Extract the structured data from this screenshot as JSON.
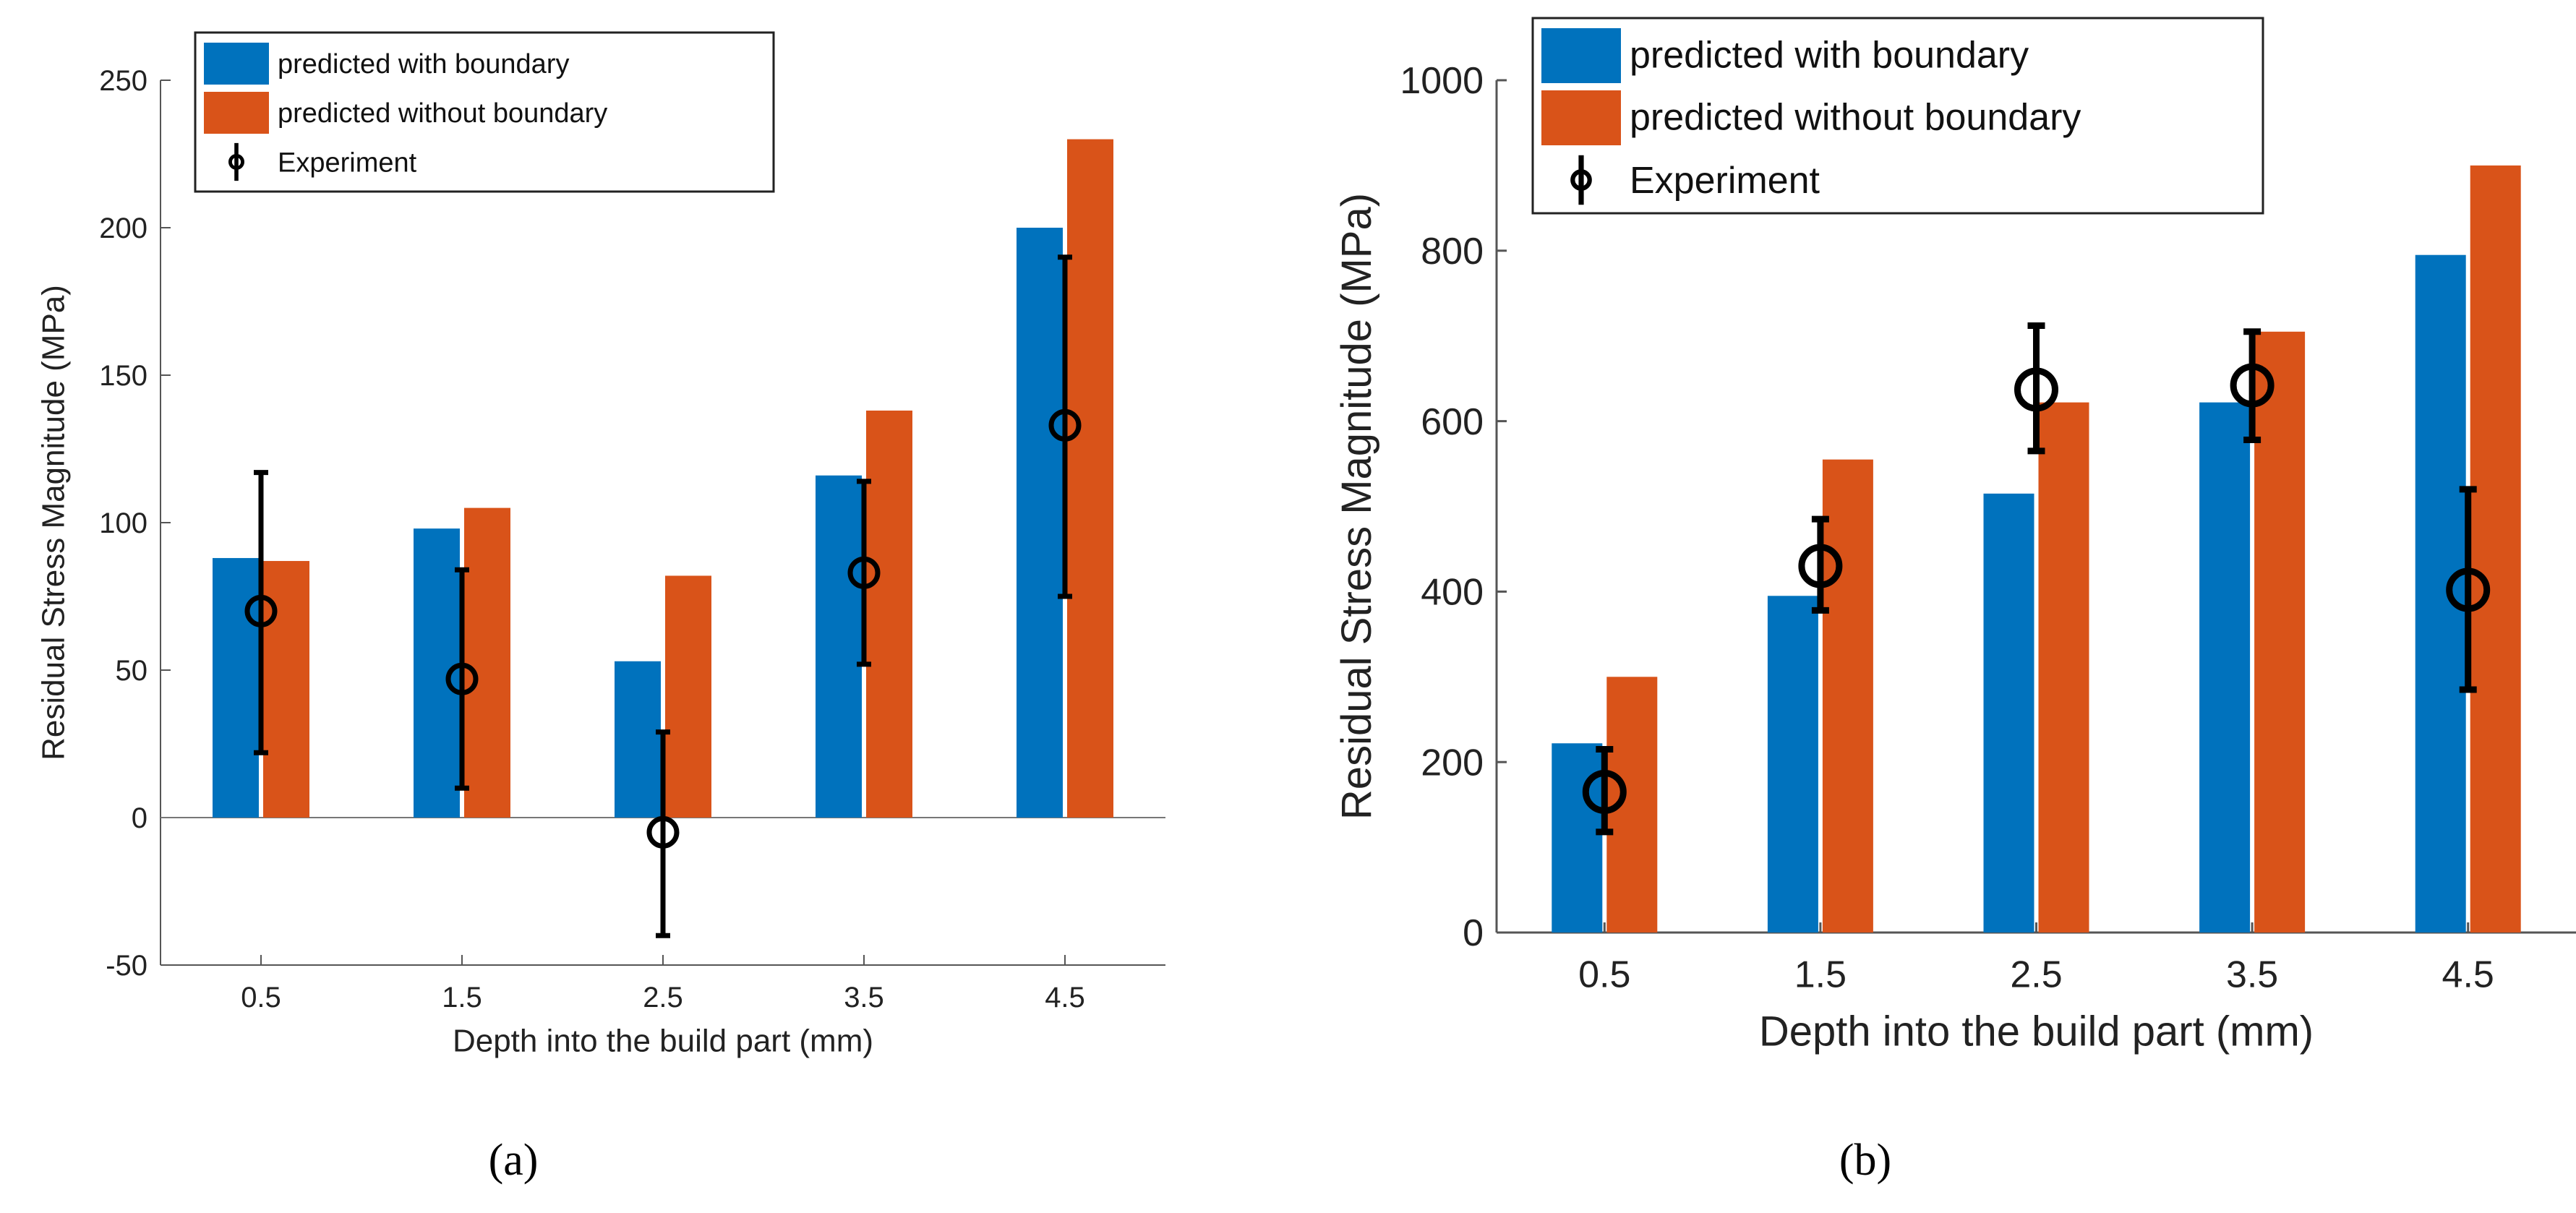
{
  "chart_data": [
    {
      "type": "bar",
      "panel_label": "(a)",
      "title": "",
      "xlabel": "Depth into the build part (mm)",
      "ylabel": "Residual Stress Magnitude (MPa)",
      "categories": [
        "0.5",
        "1.5",
        "2.5",
        "3.5",
        "4.5"
      ],
      "ylim": [
        -50,
        250
      ],
      "yticks": [
        "-50",
        "0",
        "50",
        "100",
        "150",
        "200",
        "250"
      ],
      "zero_line": true,
      "legend_position": "top-left",
      "series": [
        {
          "name": "predicted with boundary",
          "color": "#0072BD",
          "values": [
            88,
            98,
            53,
            116,
            200
          ]
        },
        {
          "name": "predicted without boundary",
          "color": "#D95319",
          "values": [
            87,
            105,
            82,
            138,
            230
          ]
        }
      ],
      "experiment": {
        "name": "Experiment",
        "color": "#000000",
        "values": [
          70,
          47,
          -5,
          83,
          133
        ],
        "lower": [
          22,
          10,
          -40,
          52,
          75
        ],
        "upper": [
          117,
          84,
          29,
          114,
          190
        ]
      }
    },
    {
      "type": "bar",
      "panel_label": "(b)",
      "title": "",
      "xlabel": "Depth into the build part (mm)",
      "ylabel": "Residual Stress Magnitude (MPa)",
      "categories": [
        "0.5",
        "1.5",
        "2.5",
        "3.5",
        "4.5"
      ],
      "ylim": [
        0,
        1000
      ],
      "yticks": [
        "0",
        "200",
        "400",
        "600",
        "800",
        "1000"
      ],
      "zero_line": false,
      "legend_position": "top-left",
      "series": [
        {
          "name": "predicted with boundary",
          "color": "#0072BD",
          "values": [
            222,
            395,
            515,
            622,
            795
          ]
        },
        {
          "name": "predicted without boundary",
          "color": "#D95319",
          "values": [
            300,
            555,
            622,
            705,
            900
          ]
        }
      ],
      "experiment": {
        "name": "Experiment",
        "color": "#000000",
        "values": [
          165,
          430,
          637,
          642,
          402
        ],
        "lower": [
          118,
          378,
          565,
          578,
          285
        ],
        "upper": [
          215,
          485,
          712,
          705,
          520
        ]
      }
    }
  ]
}
